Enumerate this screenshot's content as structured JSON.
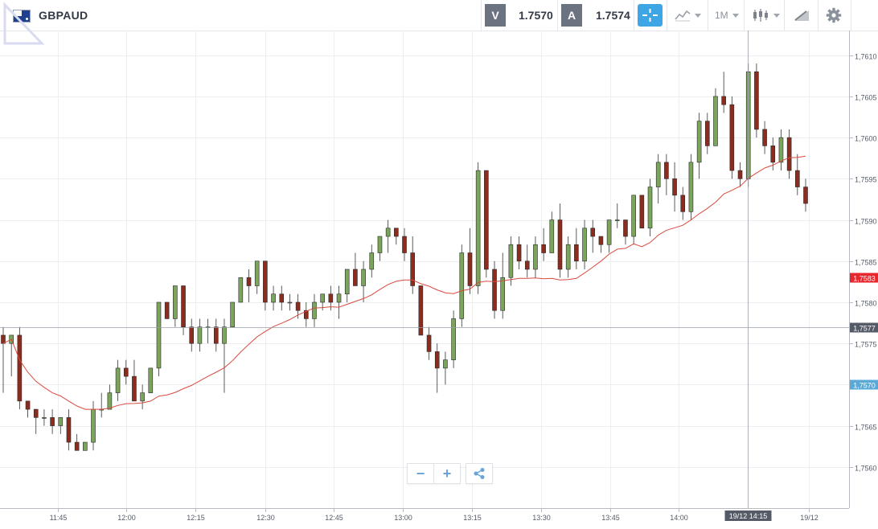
{
  "toolbar": {
    "symbol": "GBPAUD",
    "bid_label": "V",
    "bid_price": "1.7570",
    "ask_label": "A",
    "ask_price": "1.7574",
    "timeframe": "1M",
    "icons": [
      "flag-icon",
      "crosshair-icon",
      "line-chart-icon",
      "candlestick-icon",
      "drawing-tool-icon",
      "gear-icon"
    ]
  },
  "zoom": {
    "minus": "−",
    "plus": "+"
  },
  "chart_data": {
    "type": "candlestick",
    "x_ticks": [
      "11:45",
      "12:00",
      "12:15",
      "12:30",
      "12:45",
      "13:00",
      "13:15",
      "13:30",
      "13:45",
      "14:00",
      "19/12"
    ],
    "y_ticks": [
      "1,7610",
      "1,7605",
      "1,7600",
      "1,7595",
      "1,7590",
      "1,7585",
      "1,7580",
      "1,7575",
      "1,7570",
      "1,7565",
      "1,7560"
    ],
    "ylim": [
      1.7555,
      1.7613
    ],
    "crosshair": {
      "time_label": "19/12 14:15",
      "price_label": "1,7577",
      "price": 1.7577
    },
    "markers": [
      {
        "label": "1,7583",
        "price": 1.7583,
        "color": "#e8262b"
      },
      {
        "label": "1,7570",
        "price": 1.757,
        "color": "#5aa9d6"
      }
    ],
    "colors": {
      "up": "#7aa55a",
      "down": "#8b2c1f",
      "ma": "#d94a3f",
      "grid": "#eceef1"
    },
    "candles": [
      [
        1.7576,
        1.7577,
        1.7569,
        1.7575
      ],
      [
        1.7575,
        1.7576,
        1.7571,
        1.7576
      ],
      [
        1.7576,
        1.7577,
        1.7567,
        1.7568
      ],
      [
        1.7568,
        1.7568,
        1.7566,
        1.7567
      ],
      [
        1.7567,
        1.7567,
        1.7564,
        1.7566
      ],
      [
        1.7566,
        1.7567,
        1.7565,
        1.7566
      ],
      [
        1.7566,
        1.7567,
        1.7564,
        1.7565
      ],
      [
        1.7565,
        1.7566,
        1.7564,
        1.7566
      ],
      [
        1.7566,
        1.7567,
        1.7562,
        1.7563
      ],
      [
        1.7563,
        1.7564,
        1.7562,
        1.7562
      ],
      [
        1.7562,
        1.7563,
        1.7562,
        1.7563
      ],
      [
        1.7563,
        1.7568,
        1.7562,
        1.7567
      ],
      [
        1.7567,
        1.7569,
        1.7566,
        1.7567
      ],
      [
        1.7567,
        1.757,
        1.7567,
        1.7569
      ],
      [
        1.7569,
        1.7573,
        1.7568,
        1.7572
      ],
      [
        1.7572,
        1.7573,
        1.757,
        1.7571
      ],
      [
        1.7571,
        1.7573,
        1.7568,
        1.7568
      ],
      [
        1.7568,
        1.757,
        1.7567,
        1.7569
      ],
      [
        1.7569,
        1.7572,
        1.7569,
        1.7572
      ],
      [
        1.7572,
        1.758,
        1.7571,
        1.758
      ],
      [
        1.758,
        1.758,
        1.7578,
        1.7578
      ],
      [
        1.7578,
        1.7582,
        1.7577,
        1.7582
      ],
      [
        1.7582,
        1.7582,
        1.7576,
        1.7577
      ],
      [
        1.7577,
        1.7578,
        1.7574,
        1.7575
      ],
      [
        1.7575,
        1.7578,
        1.7574,
        1.7577
      ],
      [
        1.7577,
        1.7578,
        1.7575,
        1.7577
      ],
      [
        1.7577,
        1.7578,
        1.7574,
        1.7575
      ],
      [
        1.7575,
        1.7578,
        1.7569,
        1.7577
      ],
      [
        1.7577,
        1.758,
        1.7577,
        1.758
      ],
      [
        1.758,
        1.7583,
        1.758,
        1.7583
      ],
      [
        1.7583,
        1.7584,
        1.758,
        1.7582
      ],
      [
        1.7582,
        1.7585,
        1.7581,
        1.7585
      ],
      [
        1.7585,
        1.7585,
        1.7579,
        1.758
      ],
      [
        1.758,
        1.7582,
        1.7579,
        1.7581
      ],
      [
        1.7581,
        1.7582,
        1.7579,
        1.758
      ],
      [
        1.758,
        1.7581,
        1.7579,
        1.758
      ],
      [
        1.758,
        1.7581,
        1.7578,
        1.7579
      ],
      [
        1.7579,
        1.758,
        1.7577,
        1.7578
      ],
      [
        1.7578,
        1.7581,
        1.7577,
        1.758
      ],
      [
        1.758,
        1.7581,
        1.7579,
        1.7581
      ],
      [
        1.7581,
        1.7582,
        1.7579,
        1.758
      ],
      [
        1.758,
        1.7582,
        1.7578,
        1.7581
      ],
      [
        1.7581,
        1.7584,
        1.758,
        1.7584
      ],
      [
        1.7584,
        1.7586,
        1.7582,
        1.7582
      ],
      [
        1.7582,
        1.7585,
        1.758,
        1.7584
      ],
      [
        1.7584,
        1.7587,
        1.7583,
        1.7586
      ],
      [
        1.7586,
        1.7588,
        1.7585,
        1.7588
      ],
      [
        1.7588,
        1.759,
        1.7586,
        1.7589
      ],
      [
        1.7589,
        1.7589,
        1.7587,
        1.7588
      ],
      [
        1.7588,
        1.7589,
        1.7585,
        1.7586
      ],
      [
        1.7586,
        1.7588,
        1.7581,
        1.7582
      ],
      [
        1.7582,
        1.7582,
        1.7576,
        1.7576
      ],
      [
        1.7576,
        1.7577,
        1.7573,
        1.7574
      ],
      [
        1.7574,
        1.7575,
        1.7569,
        1.7572
      ],
      [
        1.7572,
        1.7574,
        1.757,
        1.7573
      ],
      [
        1.7573,
        1.7579,
        1.7572,
        1.7578
      ],
      [
        1.7578,
        1.7587,
        1.7577,
        1.7586
      ],
      [
        1.7586,
        1.7589,
        1.7581,
        1.7582
      ],
      [
        1.7582,
        1.7597,
        1.7581,
        1.7596
      ],
      [
        1.7596,
        1.7596,
        1.7583,
        1.7584
      ],
      [
        1.7584,
        1.7585,
        1.7578,
        1.7579
      ],
      [
        1.7579,
        1.7586,
        1.7578,
        1.7583
      ],
      [
        1.7583,
        1.7588,
        1.7582,
        1.7587
      ],
      [
        1.7587,
        1.7588,
        1.7584,
        1.7585
      ],
      [
        1.7585,
        1.7587,
        1.7583,
        1.7584
      ],
      [
        1.7584,
        1.7588,
        1.7583,
        1.7587
      ],
      [
        1.7587,
        1.7589,
        1.7585,
        1.7586
      ],
      [
        1.7586,
        1.7591,
        1.7586,
        1.759
      ],
      [
        1.759,
        1.7592,
        1.7583,
        1.7584
      ],
      [
        1.7584,
        1.7588,
        1.7583,
        1.7587
      ],
      [
        1.7587,
        1.7589,
        1.7584,
        1.7585
      ],
      [
        1.7585,
        1.759,
        1.7584,
        1.7589
      ],
      [
        1.7589,
        1.759,
        1.7586,
        1.7588
      ],
      [
        1.7588,
        1.7588,
        1.7586,
        1.7587
      ],
      [
        1.7587,
        1.759,
        1.7586,
        1.759
      ],
      [
        1.759,
        1.7592,
        1.7589,
        1.759
      ],
      [
        1.759,
        1.759,
        1.7587,
        1.7588
      ],
      [
        1.7588,
        1.7593,
        1.7587,
        1.7593
      ],
      [
        1.7593,
        1.7593,
        1.7589,
        1.7589
      ],
      [
        1.7589,
        1.7595,
        1.7588,
        1.7594
      ],
      [
        1.7594,
        1.7598,
        1.7592,
        1.7597
      ],
      [
        1.7597,
        1.7598,
        1.7593,
        1.7595
      ],
      [
        1.7595,
        1.7597,
        1.7591,
        1.7593
      ],
      [
        1.7593,
        1.7594,
        1.759,
        1.7591
      ],
      [
        1.7591,
        1.7598,
        1.759,
        1.7597
      ],
      [
        1.7597,
        1.7603,
        1.7595,
        1.7602
      ],
      [
        1.7602,
        1.7603,
        1.7598,
        1.7599
      ],
      [
        1.7599,
        1.7606,
        1.7599,
        1.7605
      ],
      [
        1.7605,
        1.7608,
        1.7603,
        1.7604
      ],
      [
        1.7604,
        1.7605,
        1.7595,
        1.7596
      ],
      [
        1.7596,
        1.7597,
        1.7594,
        1.7595
      ],
      [
        1.7595,
        1.7609,
        1.7594,
        1.7608
      ],
      [
        1.7608,
        1.7609,
        1.76,
        1.7601
      ],
      [
        1.7601,
        1.7602,
        1.7598,
        1.7599
      ],
      [
        1.7599,
        1.76,
        1.7596,
        1.7597
      ],
      [
        1.7597,
        1.7601,
        1.7596,
        1.76
      ],
      [
        1.76,
        1.7601,
        1.7595,
        1.7596
      ],
      [
        1.7596,
        1.7598,
        1.7593,
        1.7594
      ],
      [
        1.7594,
        1.7595,
        1.7591,
        1.7592
      ]
    ]
  }
}
